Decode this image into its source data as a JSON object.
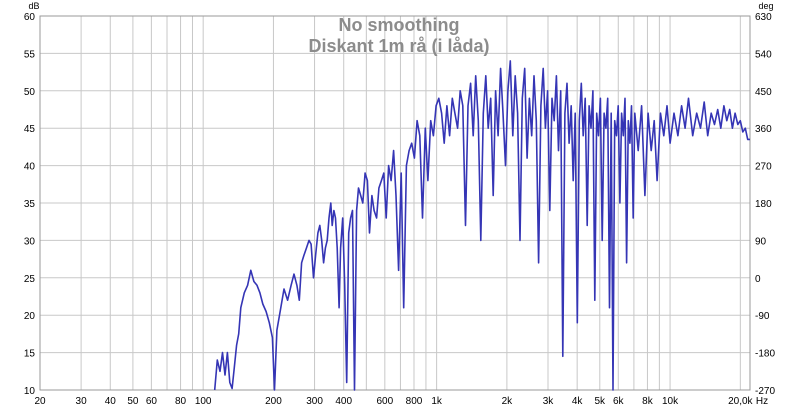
{
  "chart_data": {
    "type": "line",
    "title": "No smoothing",
    "subtitle": "Diskant 1m rå (i låda)",
    "left_axis_unit": "dB",
    "right_axis_unit": "deg",
    "x_axis_unit": "Hz",
    "x_scale": "log",
    "xlim": [
      20,
      22000
    ],
    "ylim": [
      10,
      60
    ],
    "ylim_right": [
      -270,
      630
    ],
    "grid": true,
    "x_ticks": [
      {
        "value": 20,
        "label": "20"
      },
      {
        "value": 30,
        "label": "30"
      },
      {
        "value": 40,
        "label": "40"
      },
      {
        "value": 50,
        "label": "50"
      },
      {
        "value": 60,
        "label": "60"
      },
      {
        "value": 80,
        "label": "80"
      },
      {
        "value": 100,
        "label": "100"
      },
      {
        "value": 200,
        "label": "200"
      },
      {
        "value": 300,
        "label": "300"
      },
      {
        "value": 400,
        "label": "400"
      },
      {
        "value": 600,
        "label": "600"
      },
      {
        "value": 800,
        "label": "800"
      },
      {
        "value": 1000,
        "label": "1k"
      },
      {
        "value": 2000,
        "label": "2k"
      },
      {
        "value": 3000,
        "label": "3k"
      },
      {
        "value": 4000,
        "label": "4k"
      },
      {
        "value": 5000,
        "label": "5k"
      },
      {
        "value": 6000,
        "label": "6k"
      },
      {
        "value": 8000,
        "label": "8k"
      },
      {
        "value": 10000,
        "label": "10k"
      },
      {
        "value": 20000,
        "label": "20,0k"
      }
    ],
    "y_ticks": [
      "10",
      "15",
      "20",
      "25",
      "30",
      "35",
      "40",
      "45",
      "50",
      "55",
      "60"
    ],
    "y_ticks_right": [
      "-270",
      "-180",
      "-90",
      "0",
      "90",
      "180",
      "270",
      "360",
      "450",
      "540",
      "630"
    ],
    "series_color": "#3535b5",
    "series": [
      {
        "name": "",
        "points": [
          [
            112,
            10
          ],
          [
            115,
            14
          ],
          [
            118,
            12.5
          ],
          [
            121,
            15
          ],
          [
            124,
            12
          ],
          [
            127,
            15
          ],
          [
            130,
            11
          ],
          [
            133,
            10.2
          ],
          [
            136,
            13
          ],
          [
            139,
            16
          ],
          [
            142,
            17.5
          ],
          [
            145,
            21
          ],
          [
            150,
            23
          ],
          [
            155,
            24
          ],
          [
            160,
            26
          ],
          [
            165,
            24.5
          ],
          [
            170,
            24
          ],
          [
            175,
            23
          ],
          [
            180,
            21.5
          ],
          [
            186,
            20.5
          ],
          [
            192,
            19
          ],
          [
            198,
            17
          ],
          [
            202,
            10
          ],
          [
            207,
            18
          ],
          [
            215,
            21
          ],
          [
            222,
            23.5
          ],
          [
            230,
            22
          ],
          [
            238,
            24
          ],
          [
            245,
            25.5
          ],
          [
            252,
            24
          ],
          [
            258,
            22
          ],
          [
            264,
            27
          ],
          [
            270,
            28
          ],
          [
            277,
            29
          ],
          [
            284,
            30
          ],
          [
            290,
            29.5
          ],
          [
            297,
            25
          ],
          [
            303,
            28
          ],
          [
            310,
            31
          ],
          [
            316,
            32
          ],
          [
            322,
            30
          ],
          [
            328,
            27
          ],
          [
            334,
            29
          ],
          [
            340,
            30
          ],
          [
            346,
            33
          ],
          [
            352,
            35
          ],
          [
            357,
            32
          ],
          [
            363,
            34
          ],
          [
            369,
            33
          ],
          [
            375,
            29
          ],
          [
            382,
            21
          ],
          [
            388,
            29
          ],
          [
            396,
            33
          ],
          [
            404,
            24
          ],
          [
            412,
            11
          ],
          [
            420,
            31
          ],
          [
            428,
            33
          ],
          [
            436,
            34
          ],
          [
            445,
            10
          ],
          [
            454,
            34
          ],
          [
            463,
            37
          ],
          [
            473,
            36
          ],
          [
            483,
            35
          ],
          [
            494,
            39
          ],
          [
            505,
            38
          ],
          [
            516,
            31
          ],
          [
            528,
            36
          ],
          [
            540,
            34
          ],
          [
            553,
            33
          ],
          [
            566,
            37
          ],
          [
            580,
            38
          ],
          [
            594,
            39
          ],
          [
            608,
            33
          ],
          [
            623,
            40
          ],
          [
            638,
            38
          ],
          [
            654,
            42
          ],
          [
            670,
            36
          ],
          [
            687,
            26
          ],
          [
            705,
            39
          ],
          [
            723,
            21
          ],
          [
            742,
            40
          ],
          [
            762,
            42
          ],
          [
            782,
            43
          ],
          [
            803,
            41
          ],
          [
            825,
            46
          ],
          [
            847,
            44
          ],
          [
            870,
            33
          ],
          [
            894,
            45
          ],
          [
            918,
            38
          ],
          [
            943,
            46
          ],
          [
            969,
            44
          ],
          [
            995,
            48
          ],
          [
            1022,
            49
          ],
          [
            1050,
            47
          ],
          [
            1078,
            43
          ],
          [
            1107,
            48
          ],
          [
            1137,
            44
          ],
          [
            1167,
            49
          ],
          [
            1198,
            47
          ],
          [
            1230,
            45
          ],
          [
            1262,
            50
          ],
          [
            1295,
            48
          ],
          [
            1329,
            32
          ],
          [
            1363,
            48
          ],
          [
            1398,
            51
          ],
          [
            1434,
            44
          ],
          [
            1471,
            52
          ],
          [
            1508,
            46
          ],
          [
            1546,
            30
          ],
          [
            1585,
            47
          ],
          [
            1624,
            52
          ],
          [
            1664,
            45
          ],
          [
            1705,
            49
          ],
          [
            1747,
            36
          ],
          [
            1790,
            50
          ],
          [
            1834,
            44
          ],
          [
            1879,
            53
          ],
          [
            1925,
            47
          ],
          [
            1972,
            40
          ],
          [
            2020,
            50
          ],
          [
            2069,
            54
          ],
          [
            2119,
            44
          ],
          [
            2170,
            52
          ],
          [
            2222,
            47
          ],
          [
            2275,
            30
          ],
          [
            2329,
            49
          ],
          [
            2384,
            53
          ],
          [
            2440,
            41
          ],
          [
            2497,
            49
          ],
          [
            2555,
            44
          ],
          [
            2614,
            52
          ],
          [
            2674,
            46
          ],
          [
            2735,
            27
          ],
          [
            2797,
            48
          ],
          [
            2860,
            53
          ],
          [
            2924,
            45
          ],
          [
            2989,
            50
          ],
          [
            3055,
            34
          ],
          [
            3122,
            49
          ],
          [
            3190,
            46
          ],
          [
            3259,
            52
          ],
          [
            3329,
            42
          ],
          [
            3400,
            50
          ],
          [
            3472,
            14.5
          ],
          [
            3545,
            47
          ],
          [
            3619,
            51
          ],
          [
            3694,
            43
          ],
          [
            3770,
            48
          ],
          [
            3847,
            38
          ],
          [
            3925,
            47
          ],
          [
            4004,
            19
          ],
          [
            4084,
            46
          ],
          [
            4165,
            51
          ],
          [
            4247,
            44
          ],
          [
            4330,
            49
          ],
          [
            4414,
            32
          ],
          [
            4499,
            48
          ],
          [
            4585,
            45
          ],
          [
            4672,
            50
          ],
          [
            4760,
            22
          ],
          [
            4849,
            47
          ],
          [
            4939,
            44
          ],
          [
            5030,
            49
          ],
          [
            5122,
            30
          ],
          [
            5215,
            47
          ],
          [
            5309,
            45
          ],
          [
            5404,
            49
          ],
          [
            5500,
            21
          ],
          [
            5597,
            47
          ],
          [
            5695,
            10
          ],
          [
            5794,
            46
          ],
          [
            5894,
            44
          ],
          [
            5995,
            48
          ],
          [
            6097,
            35
          ],
          [
            6200,
            47
          ],
          [
            6304,
            44
          ],
          [
            6409,
            49
          ],
          [
            6515,
            27
          ],
          [
            6622,
            46
          ],
          [
            6730,
            43
          ],
          [
            6839,
            48
          ],
          [
            6949,
            33
          ],
          [
            7060,
            47
          ],
          [
            7300,
            42
          ],
          [
            7550,
            48
          ],
          [
            7800,
            36
          ],
          [
            8050,
            47
          ],
          [
            8300,
            42
          ],
          [
            8550,
            46
          ],
          [
            8800,
            38
          ],
          [
            9100,
            47
          ],
          [
            9400,
            44
          ],
          [
            9700,
            48
          ],
          [
            10000,
            43
          ],
          [
            10400,
            47
          ],
          [
            10800,
            44
          ],
          [
            11200,
            48
          ],
          [
            11600,
            45
          ],
          [
            12000,
            49
          ],
          [
            12500,
            44
          ],
          [
            13000,
            47
          ],
          [
            13500,
            45
          ],
          [
            14000,
            48.5
          ],
          [
            14500,
            44
          ],
          [
            15000,
            47
          ],
          [
            15500,
            45.5
          ],
          [
            16000,
            47.5
          ],
          [
            16500,
            45
          ],
          [
            17000,
            48
          ],
          [
            17500,
            46
          ],
          [
            18000,
            47.5
          ],
          [
            18500,
            45
          ],
          [
            19000,
            47
          ],
          [
            19500,
            45.5
          ],
          [
            20000,
            46
          ],
          [
            20500,
            44.5
          ],
          [
            21000,
            45
          ],
          [
            21500,
            43.5
          ],
          [
            22000,
            43.5
          ]
        ]
      }
    ]
  }
}
